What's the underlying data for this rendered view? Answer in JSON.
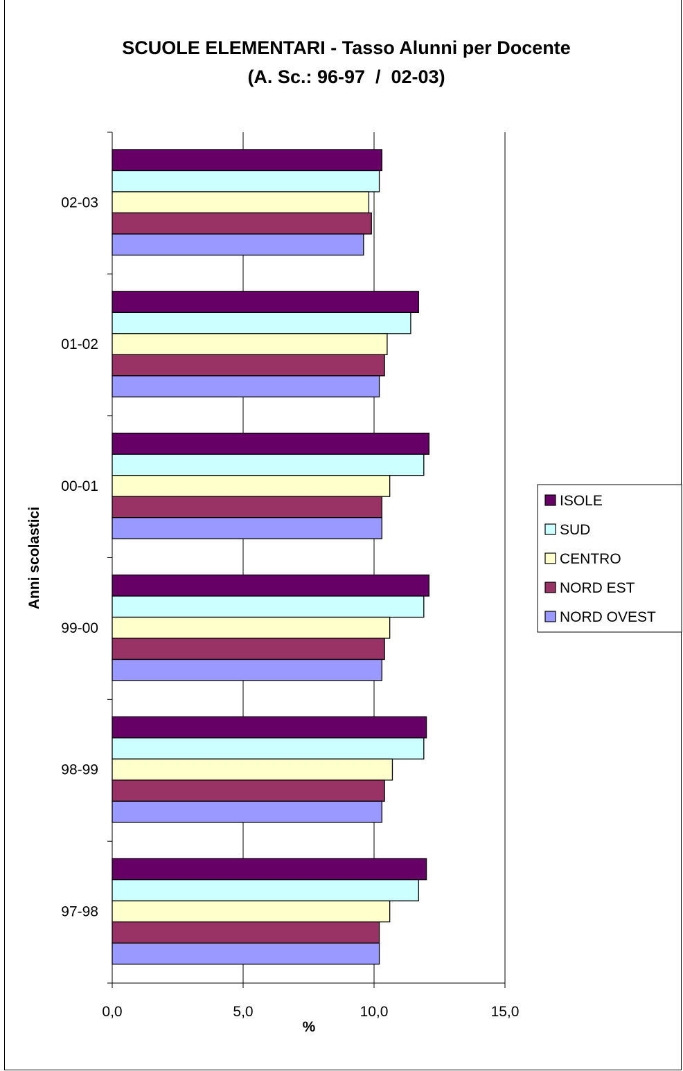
{
  "chart_data": {
    "type": "bar",
    "orientation": "horizontal",
    "title": "SCUOLE ELEMENTARI - Tasso Alunni per Docente",
    "subtitle": "(A. Sc.: 96-97  /  02-03)",
    "xlabel": "%",
    "ylabel": "Anni scolastici",
    "xlim": [
      0,
      15
    ],
    "xticks": [
      "0,0",
      "5,0",
      "10,0",
      "15,0"
    ],
    "grid": "vertical gridlines",
    "legend_position": "right",
    "categories": [
      "02-03",
      "01-02",
      "00-01",
      "99-00",
      "98-99",
      "97-98"
    ],
    "series": [
      {
        "name": "ISOLE",
        "color": "#660066",
        "values": [
          10.3,
          11.7,
          12.1,
          12.1,
          12.0,
          12.0
        ]
      },
      {
        "name": "SUD",
        "color": "#CCFFFF",
        "values": [
          10.2,
          11.4,
          11.9,
          11.9,
          11.9,
          11.7
        ]
      },
      {
        "name": "CENTRO",
        "color": "#FFFFCC",
        "values": [
          9.8,
          10.5,
          10.6,
          10.6,
          10.7,
          10.6
        ]
      },
      {
        "name": "NORD EST",
        "color": "#993366",
        "values": [
          9.9,
          10.4,
          10.3,
          10.4,
          10.4,
          10.2
        ]
      },
      {
        "name": "NORD OVEST",
        "color": "#9999FF",
        "values": [
          9.6,
          10.2,
          10.3,
          10.3,
          10.3,
          10.2
        ]
      }
    ]
  }
}
